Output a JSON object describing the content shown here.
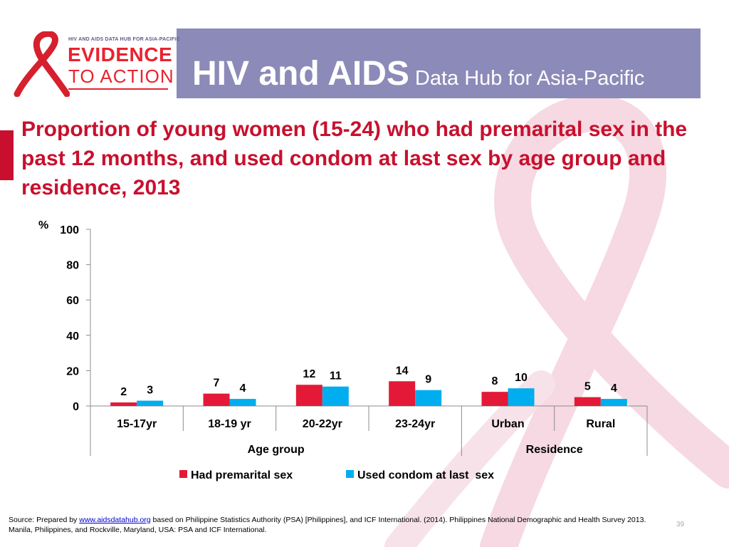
{
  "header": {
    "logo_hub_text": "HIV AND AIDS DATA HUB FOR ASIA-PACIFIC",
    "logo_line1": "EVIDENCE",
    "logo_line2": "TO ACTION",
    "title_main": "HIV and AIDS",
    "title_sub": "Data Hub for Asia-Pacific",
    "band_color": "#8c8ab8"
  },
  "slide_title": "Proportion of young women (15-24) who had premarital sex in the past 12 months, and used condom at last sex by age group and residence, 2013",
  "chart_data": {
    "type": "bar",
    "ylabel": "%",
    "ylim": [
      0,
      100
    ],
    "yticks": [
      0,
      20,
      40,
      60,
      80,
      100
    ],
    "categories": [
      "15-17yr",
      "18-19 yr",
      "20-22yr",
      "23-24yr",
      "Urban",
      "Rural"
    ],
    "groups": [
      {
        "label": "Age group",
        "categories": [
          "15-17yr",
          "18-19 yr",
          "20-22yr",
          "23-24yr"
        ]
      },
      {
        "label": "Residence",
        "categories": [
          "Urban",
          "Rural"
        ]
      }
    ],
    "series": [
      {
        "name": "Had premarital sex",
        "color": "#e31937",
        "values": [
          2,
          7,
          12,
          14,
          8,
          5
        ]
      },
      {
        "name": "Used condom at last  sex",
        "color": "#00aeef",
        "values": [
          3,
          4,
          11,
          9,
          10,
          4
        ]
      }
    ],
    "legend_position": "bottom",
    "grid": false
  },
  "source": {
    "prefix": "Source: Prepared by",
    "link": "www.aidsdatahub.org",
    "rest": " based on Philippine Statistics Authority (PSA) [Philippines], and ICF International. (2014). Philippines National Demographic and Health Survey 2013. Manila, Philippines, and Rockville, Maryland, USA: PSA and ICF International."
  },
  "page_number": "39"
}
